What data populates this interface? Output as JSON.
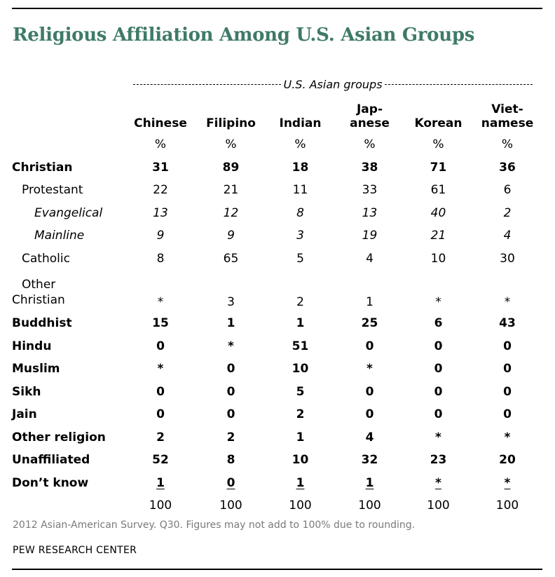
{
  "title": "Religious Affiliation Among U.S. Asian Groups",
  "group_label": "U.S. Asian groups",
  "columns": [
    {
      "line1": "",
      "line2": "Chinese"
    },
    {
      "line1": "",
      "line2": "Filipino"
    },
    {
      "line1": "",
      "line2": "Indian"
    },
    {
      "line1": "Jap-",
      "line2": "anese"
    },
    {
      "line1": "",
      "line2": "Korean"
    },
    {
      "line1": "Viet-",
      "line2": "namese"
    }
  ],
  "pct_symbol": "%",
  "rows": [
    {
      "label": "Christian",
      "values": [
        "31",
        "89",
        "18",
        "38",
        "71",
        "36"
      ]
    },
    {
      "label": "Protestant",
      "values": [
        "22",
        "21",
        "11",
        "33",
        "61",
        "6"
      ]
    },
    {
      "label": "Evangelical",
      "values": [
        "13",
        "12",
        "8",
        "13",
        "40",
        "2"
      ]
    },
    {
      "label": "Mainline",
      "values": [
        "9",
        "9",
        "3",
        "19",
        "21",
        "4"
      ]
    },
    {
      "label": "Catholic",
      "values": [
        "8",
        "65",
        "5",
        "4",
        "10",
        "30"
      ]
    },
    {
      "label_line1": "Other",
      "label_line2": "Christian",
      "values": [
        "*",
        "3",
        "2",
        "1",
        "*",
        "*"
      ]
    },
    {
      "label": "Buddhist",
      "values": [
        "15",
        "1",
        "1",
        "25",
        "6",
        "43"
      ]
    },
    {
      "label": "Hindu",
      "values": [
        "0",
        "*",
        "51",
        "0",
        "0",
        "0"
      ]
    },
    {
      "label": "Muslim",
      "values": [
        "*",
        "0",
        "10",
        "*",
        "0",
        "0"
      ]
    },
    {
      "label": "Sikh",
      "values": [
        "0",
        "0",
        "5",
        "0",
        "0",
        "0"
      ]
    },
    {
      "label": "Jain",
      "values": [
        "0",
        "0",
        "2",
        "0",
        "0",
        "0"
      ]
    },
    {
      "label": "Other religion",
      "values": [
        "2",
        "2",
        "1",
        "4",
        "*",
        "*"
      ]
    },
    {
      "label": "Unaffiliated",
      "values": [
        "52",
        "8",
        "10",
        "32",
        "23",
        "20"
      ]
    },
    {
      "label": "Don’t know",
      "values": [
        "1",
        "0",
        "1",
        "1",
        "*",
        "*"
      ]
    }
  ],
  "totals": [
    "100",
    "100",
    "100",
    "100",
    "100",
    "100"
  ],
  "footnote": "2012 Asian-American Survey. Q30. Figures may not add to 100% due to rounding.",
  "source": "PEW RESEARCH CENTER",
  "colors": {
    "title": "#3f7a68",
    "footnote": "#7a7a7a"
  }
}
